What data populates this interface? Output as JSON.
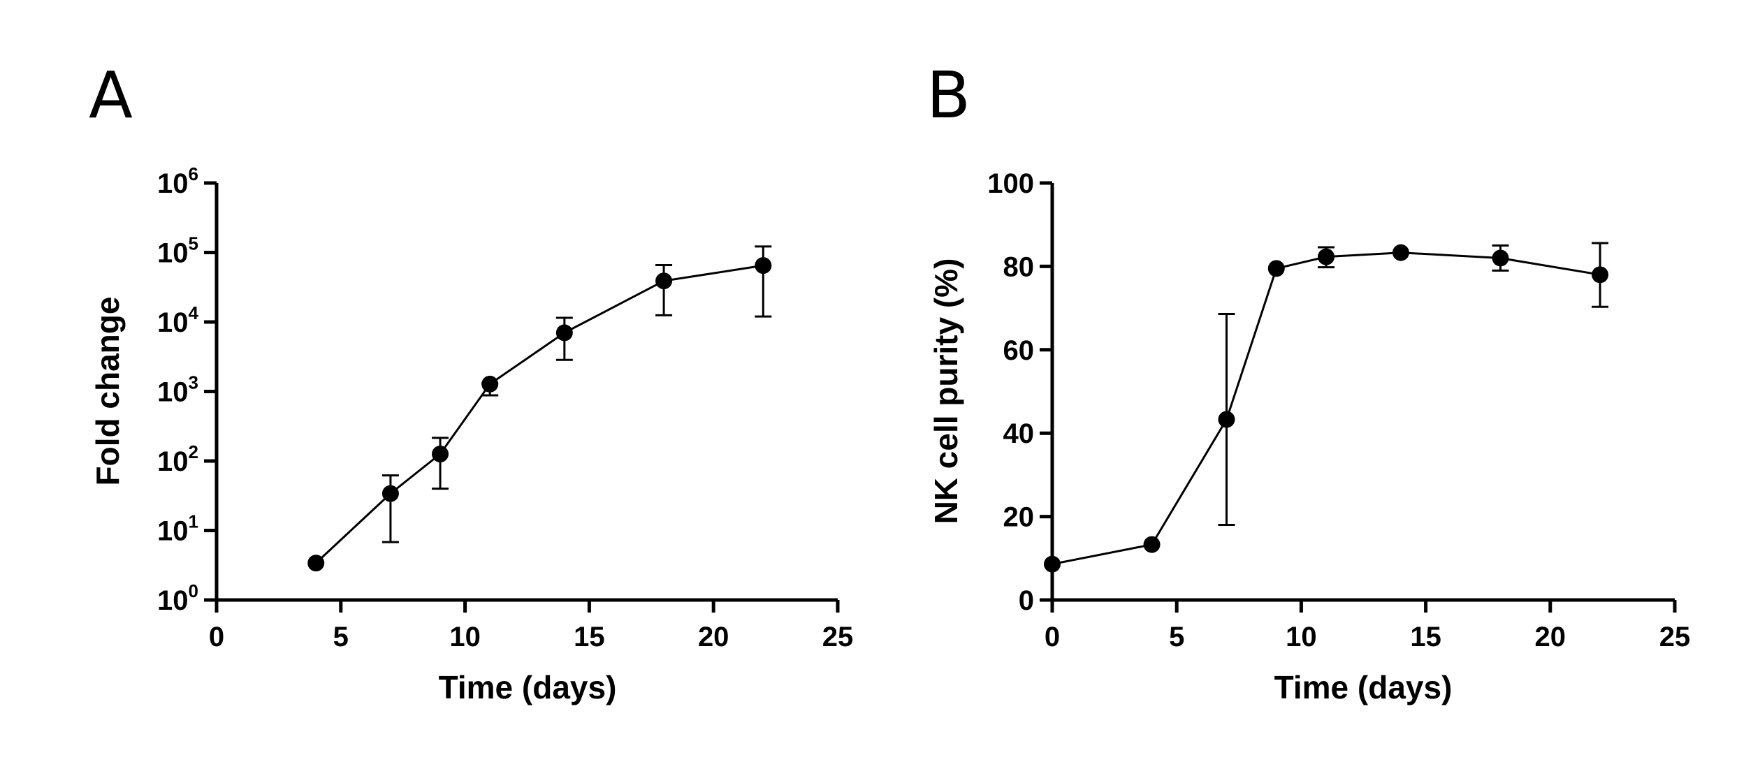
{
  "chart_data": [
    {
      "panel": "A",
      "type": "line",
      "xlabel": "Time (days)",
      "ylabel": "Fold change",
      "yscale": "log",
      "xlim": [
        0,
        25
      ],
      "ylim": [
        1,
        1000000
      ],
      "xticks": [
        "0",
        "5",
        "10",
        "15",
        "20",
        "25"
      ],
      "yticks": [
        {
          "base": "10",
          "exp": "0"
        },
        {
          "base": "10",
          "exp": "1"
        },
        {
          "base": "10",
          "exp": "2"
        },
        {
          "base": "10",
          "exp": "3"
        },
        {
          "base": "10",
          "exp": "4"
        },
        {
          "base": "10",
          "exp": "5"
        },
        {
          "base": "10",
          "exp": "6"
        }
      ],
      "series": [
        {
          "name": "Fold change",
          "x": [
            4,
            7,
            9,
            11,
            14,
            18,
            22
          ],
          "y": [
            3.4,
            34,
            126,
            1280,
            7000,
            39000,
            65000
          ],
          "err_low": [
            null,
            6.8,
            40,
            880,
            2850,
            12500,
            12000
          ],
          "err_high": [
            null,
            62,
            215,
            1300,
            11500,
            66000,
            122000
          ]
        }
      ]
    },
    {
      "panel": "B",
      "type": "line",
      "xlabel": "Time (days)",
      "ylabel": "NK cell purity (%)",
      "yscale": "linear",
      "xlim": [
        0,
        25
      ],
      "ylim": [
        0,
        100
      ],
      "xticks": [
        "0",
        "5",
        "10",
        "15",
        "20",
        "25"
      ],
      "yticks": [
        "0",
        "20",
        "40",
        "60",
        "80",
        "100"
      ],
      "series": [
        {
          "name": "NK cell purity",
          "x": [
            0,
            4,
            7,
            9,
            11,
            14,
            18,
            22
          ],
          "y": [
            8.6,
            13.3,
            43.3,
            79.5,
            82.3,
            83.3,
            82,
            78
          ],
          "err_low": [
            null,
            null,
            18,
            79.5,
            79.8,
            83.3,
            79,
            70.3
          ],
          "err_high": [
            null,
            null,
            68.6,
            79.5,
            84.6,
            83.3,
            85,
            85.6
          ]
        }
      ]
    }
  ]
}
